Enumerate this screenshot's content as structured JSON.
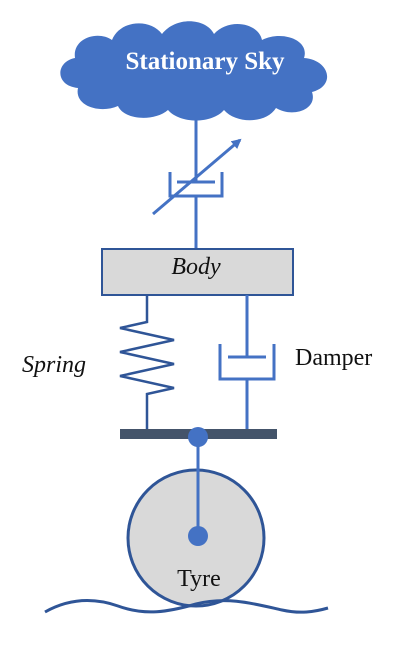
{
  "diagram": {
    "sky_label": "Stationary Sky",
    "body_label": "Body",
    "spring_label": "Spring",
    "damper_label": "Damper",
    "tyre_label": "Tyre"
  },
  "colors": {
    "cloud_fill": "#4472C4",
    "line_blue": "#4472C4",
    "body_fill": "#D9D9D9",
    "body_stroke": "#2F5597",
    "axle_bar": "#44546A",
    "tyre_fill": "#D9D9D9",
    "road": "#2F5597"
  }
}
